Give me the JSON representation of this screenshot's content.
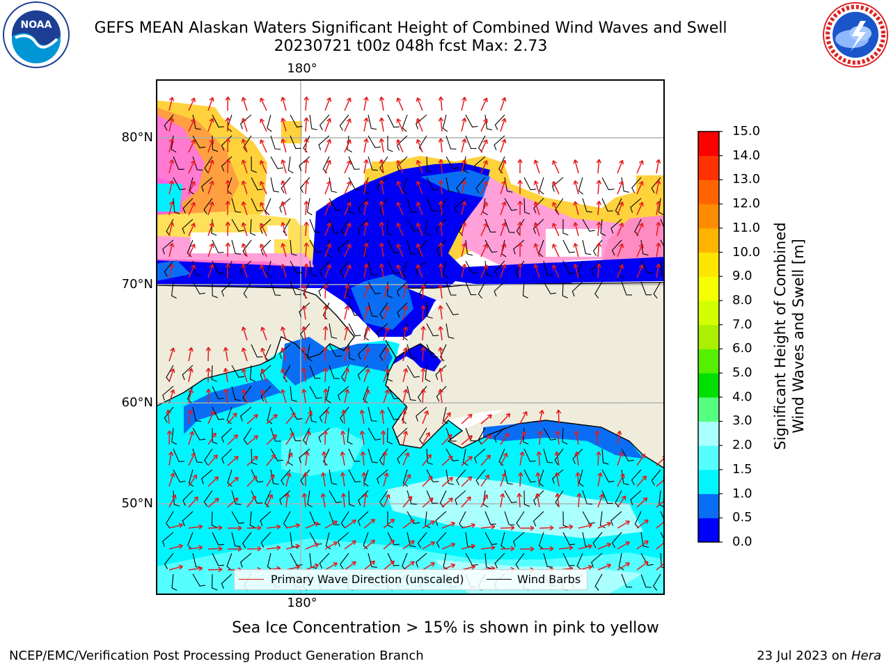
{
  "header": {
    "title_line1": "GEFS MEAN Alaskan Waters Significant Height of Combined Wind Waves and Swell",
    "title_line2": "20230721 t00z 048h fcst   Max: 2.73"
  },
  "logos": {
    "left": {
      "text": "NOAA",
      "ring_text": "NATIONAL OCEANIC AND ATMOSPHERIC ADMINISTRATION · U.S. DEPARTMENT OF COMMERCE"
    },
    "right": {
      "ring_text": "NATIONAL WEATHER SERVICE"
    }
  },
  "map": {
    "lon_label_top": "180°",
    "lon_label_bottom": "180°",
    "lat_labels": [
      "80°N",
      "70°N",
      "60°N",
      "50°N"
    ],
    "colors": {
      "ocean_land": "#efecdc",
      "grid": "#b0b0b0",
      "wave_arrow": "#e41a1c",
      "wind_barb": "#000000"
    }
  },
  "legend": {
    "wave_label": "Primary Wave Direction (unscaled)",
    "wind_label": "Wind Barbs"
  },
  "colorbar": {
    "title_line1": "Significant Height of Combined",
    "title_line2": "Wind Waves and Swell [m]",
    "ticks": [
      "0.0",
      "0.5",
      "1.0",
      "1.5",
      "2.0",
      "3.0",
      "4.0",
      "5.0",
      "6.0",
      "7.0",
      "8.0",
      "9.0",
      "10.0",
      "11.0",
      "12.0",
      "13.0",
      "14.0",
      "15.0"
    ],
    "colors": [
      "#0000ff",
      "#0a6ef5",
      "#00f5ff",
      "#55ffff",
      "#aaffff",
      "#55ff7f",
      "#00e000",
      "#55f000",
      "#aaf000",
      "#d2ff00",
      "#f5ff00",
      "#ffe600",
      "#ffb400",
      "#ff8c00",
      "#ff6400",
      "#ff3200",
      "#ff0000"
    ]
  },
  "notes": {
    "sea_ice": "Sea Ice Concentration > 15% is shown in pink to yellow"
  },
  "footer": {
    "left": "NCEP/EMC/Verification Post Processing Product Generation Branch",
    "date": "23 Jul 2023 on ",
    "host": "Hera"
  }
}
